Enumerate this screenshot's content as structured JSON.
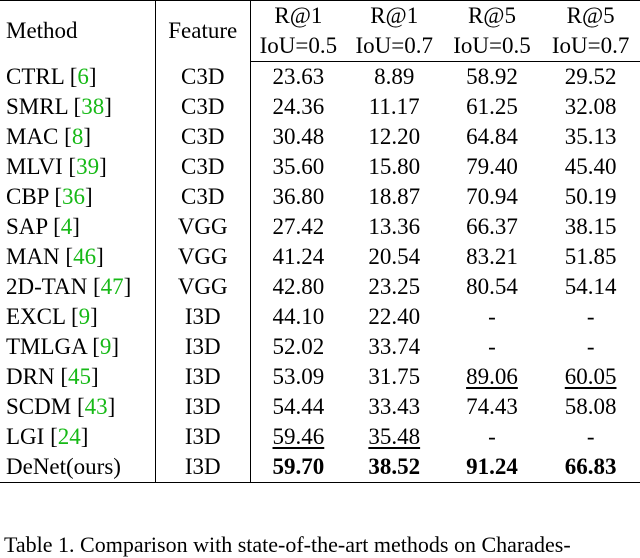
{
  "table": {
    "header": {
      "method": "Method",
      "feature": "Feature",
      "metrics": [
        {
          "top": "R@1",
          "bottom": "IoU=0.5"
        },
        {
          "top": "R@1",
          "bottom": "IoU=0.7"
        },
        {
          "top": "R@5",
          "bottom": "IoU=0.5"
        },
        {
          "top": "R@5",
          "bottom": "IoU=0.7"
        }
      ]
    },
    "rows": [
      {
        "method": "CTRL",
        "ref": "6",
        "feature": "C3D",
        "values": [
          "23.63",
          "8.89",
          "58.92",
          "29.52"
        ]
      },
      {
        "method": "SMRL",
        "ref": "38",
        "feature": "C3D",
        "values": [
          "24.36",
          "11.17",
          "61.25",
          "32.08"
        ]
      },
      {
        "method": "MAC",
        "ref": "8",
        "feature": "C3D",
        "values": [
          "30.48",
          "12.20",
          "64.84",
          "35.13"
        ]
      },
      {
        "method": "MLVI",
        "ref": "39",
        "feature": "C3D",
        "values": [
          "35.60",
          "15.80",
          "79.40",
          "45.40"
        ]
      },
      {
        "method": "CBP",
        "ref": "36",
        "feature": "C3D",
        "values": [
          "36.80",
          "18.87",
          "70.94",
          "50.19"
        ]
      },
      {
        "method": "SAP",
        "ref": "4",
        "feature": "VGG",
        "values": [
          "27.42",
          "13.36",
          "66.37",
          "38.15"
        ]
      },
      {
        "method": "MAN",
        "ref": "46",
        "feature": "VGG",
        "values": [
          "41.24",
          "20.54",
          "83.21",
          "51.85"
        ]
      },
      {
        "method": "2D-TAN",
        "ref": "47",
        "feature": "VGG",
        "values": [
          "42.80",
          "23.25",
          "80.54",
          "54.14"
        ]
      },
      {
        "method": "EXCL",
        "ref": "9",
        "feature": "I3D",
        "values": [
          "44.10",
          "22.40",
          "-",
          "-"
        ]
      },
      {
        "method": "TMLGA",
        "ref": "9",
        "feature": "I3D",
        "values": [
          "52.02",
          "33.74",
          "-",
          "-"
        ]
      },
      {
        "method": "DRN",
        "ref": "45",
        "feature": "I3D",
        "values": [
          "53.09",
          "31.75",
          "89.06",
          "60.05"
        ]
      },
      {
        "method": "SCDM",
        "ref": "43",
        "feature": "I3D",
        "values": [
          "54.44",
          "33.43",
          "74.43",
          "58.08"
        ]
      },
      {
        "method": "LGI",
        "ref": "24",
        "feature": "I3D",
        "values": [
          "59.46",
          "35.48",
          "-",
          "-"
        ]
      },
      {
        "method": "DeNet(ours)",
        "ref": "",
        "feature": "I3D",
        "values": [
          "59.70",
          "38.52",
          "91.24",
          "66.83"
        ]
      }
    ]
  },
  "caption": "Table 1. Comparison with state-of-the-art methods on Charades-"
}
